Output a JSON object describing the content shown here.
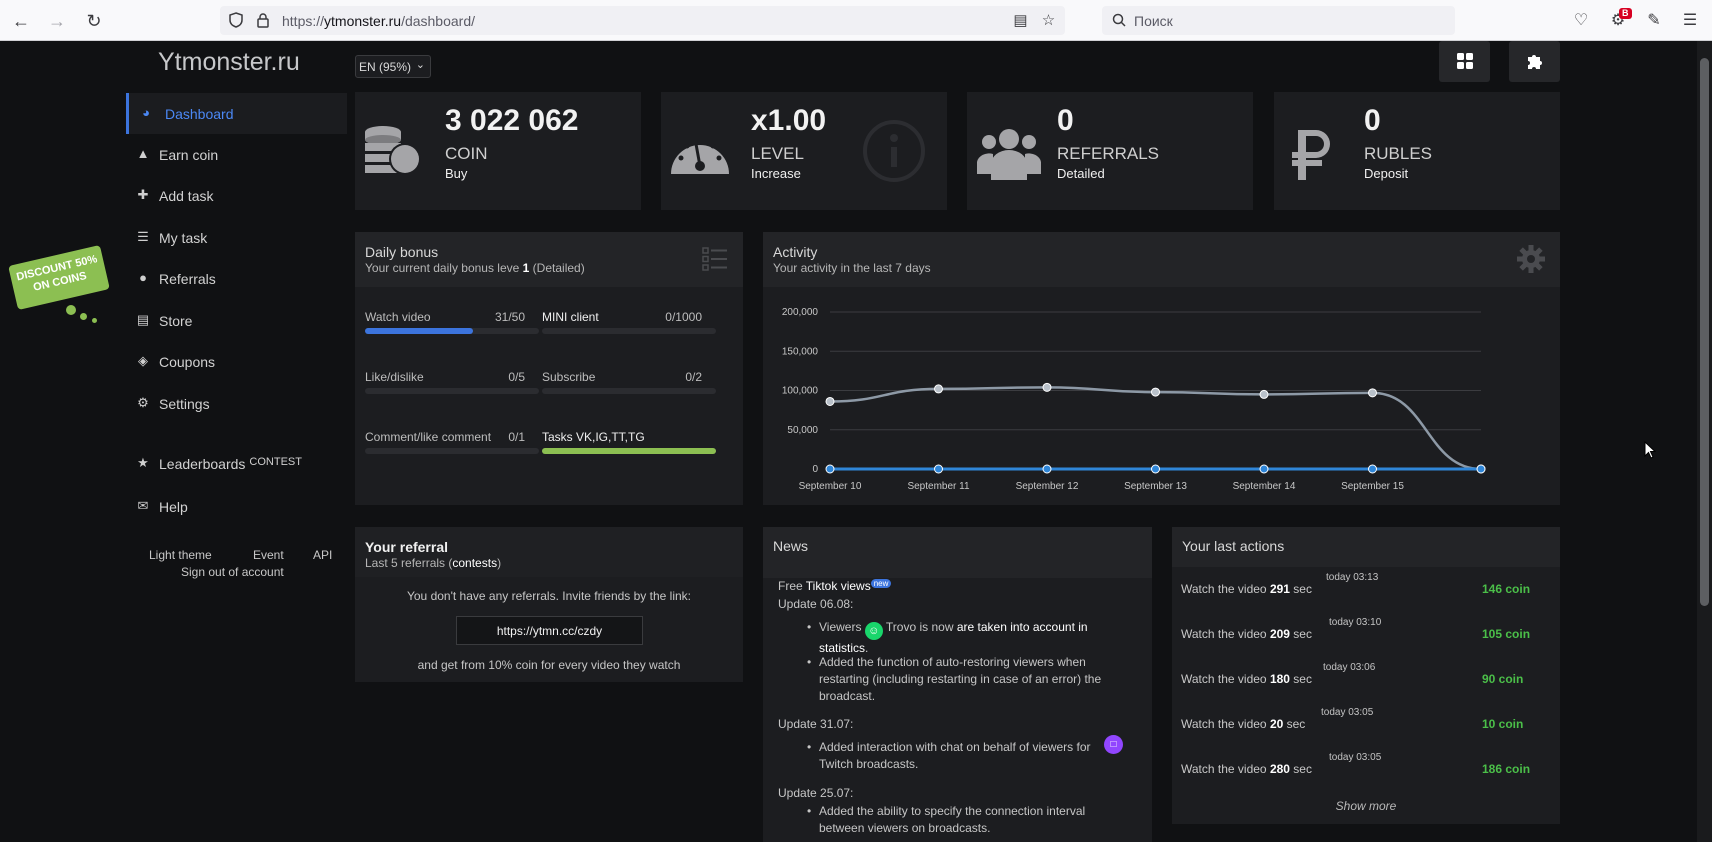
{
  "browser": {
    "url_prefix": "https://",
    "url_host": "ytmonster.ru",
    "url_path": "/dashboard/",
    "search_placeholder": "Поиск",
    "ext_badge": "B"
  },
  "header": {
    "logo": "Ytmonster.ru",
    "language": "EN (95%)"
  },
  "sidebar": {
    "items": [
      {
        "label": "Dashboard",
        "icon": "pie-chart-icon"
      },
      {
        "label": "Earn coin",
        "icon": "thumbs-up-icon"
      },
      {
        "label": "Add task",
        "icon": "plus-icon"
      },
      {
        "label": "My task",
        "icon": "list-icon"
      },
      {
        "label": "Referrals",
        "icon": "users-icon"
      },
      {
        "label": "Store",
        "icon": "basket-icon"
      },
      {
        "label": "Coupons",
        "icon": "tag-icon"
      },
      {
        "label": "Settings",
        "icon": "gears-icon"
      },
      {
        "label": "Leaderboards",
        "icon": "trophy-icon",
        "sup": "CONTEST"
      },
      {
        "label": "Help",
        "icon": "envelope-icon"
      }
    ],
    "links": {
      "light_theme": "Light theme",
      "event": "Event",
      "api": "API",
      "signout": "Sign out of account"
    },
    "discount_line1": "DISCOUNT 50%",
    "discount_line2": "ON COINS"
  },
  "stats": [
    {
      "value": "3 022 062",
      "label": "COIN",
      "action": "Buy",
      "icon": "coins-icon"
    },
    {
      "value": "x1.00",
      "label": "LEVEL",
      "action": "Increase",
      "icon": "speedometer-icon"
    },
    {
      "value": "0",
      "label": "REFERRALS",
      "action": "Detailed",
      "icon": "users-icon"
    },
    {
      "value": "0",
      "label": "RUBLES",
      "action": "Deposit",
      "icon": "ruble-icon"
    }
  ],
  "daily_bonus": {
    "title": "Daily bonus",
    "subtitle_pre": "Your current daily bonus leve ",
    "subtitle_level": "1",
    "subtitle_post": " (Detailed)",
    "tasks": [
      {
        "label": "Watch video",
        "count": "31/50",
        "progress": 0.62,
        "color": "#3c74dd"
      },
      {
        "label": "MINI client",
        "count": "0/1000",
        "progress": 0,
        "color": "#3c74dd"
      },
      {
        "label": "Like/dislike",
        "count": "0/5",
        "progress": 0,
        "color": "#3c74dd"
      },
      {
        "label": "Subscribe",
        "count": "0/2",
        "progress": 0,
        "color": "#3c74dd"
      },
      {
        "label": "Comment/like comment",
        "count": "0/1",
        "progress": 0,
        "color": "#3c74dd"
      },
      {
        "label": "Tasks VK,IG,TT,TG",
        "count": "",
        "progress": 1,
        "color": "#8cbf52"
      }
    ]
  },
  "activity": {
    "title": "Activity",
    "subtitle": "Your activity in the last 7 days"
  },
  "chart_data": {
    "type": "line",
    "categories": [
      "September 10",
      "September 11",
      "September 12",
      "September 13",
      "September 14",
      "September 15",
      ""
    ],
    "ylim": [
      0,
      200000
    ],
    "yticks": [
      "0",
      "50,000",
      "100,000",
      "150,000",
      "200,000"
    ],
    "series": [
      {
        "values": [
          86000,
          102000,
          104000,
          98000,
          95000,
          97000,
          0
        ],
        "color": "#8d99a6"
      },
      {
        "values": [
          0,
          0,
          0,
          0,
          0,
          0,
          0
        ],
        "color": "#2f86d8"
      }
    ],
    "grid": true
  },
  "referral": {
    "title": "Your referral",
    "sub_pre": "Last 5 referrals (",
    "sub_link": "contests",
    "sub_post": ")",
    "invite": "You don't have any referrals. Invite friends by the link:",
    "link": "https://ytmn.cc/czdy",
    "footer": "and get from 10% coin for every video they watch"
  },
  "news": {
    "title": "News",
    "free_pre": "Free ",
    "free_bold": "Tiktok views",
    "new_badge": "new",
    "u1": "Update 06.08:",
    "u1_b1_pre": "Viewers ",
    "u1_b1_mid": " Trovo is now ",
    "u1_b1_bold": "are taken into account in statistics",
    "u1_b1_post": ".",
    "u1_b2": "Added the function of auto-restoring viewers when restarting (including restarting in case of an error) the broadcast.",
    "u2": "Update 31.07:",
    "u2_b1": "Added interaction with chat on behalf of viewers for Twitch broadcasts.",
    "u3": "Update 25.07:",
    "u3_b1": "Added the ability to specify the connection interval between viewers on broadcasts."
  },
  "last_actions": {
    "title": "Your last actions",
    "items": [
      {
        "pre": "Watch the video ",
        "sec": "291",
        "post": " sec",
        "time": "today 03:13",
        "coin": "146 coin"
      },
      {
        "pre": "Watch the video ",
        "sec": "209",
        "post": " sec",
        "time": "today 03:10",
        "coin": "105 coin"
      },
      {
        "pre": "Watch the video ",
        "sec": "180",
        "post": " sec",
        "time": "today 03:06",
        "coin": "90 coin"
      },
      {
        "pre": "Watch the video ",
        "sec": "20",
        "post": " sec",
        "time": "today 03:05",
        "coin": "10 coin"
      },
      {
        "pre": "Watch the video ",
        "sec": "280",
        "post": " sec",
        "time": "today 03:05",
        "coin": "186 coin"
      }
    ],
    "show_more": "Show more"
  }
}
